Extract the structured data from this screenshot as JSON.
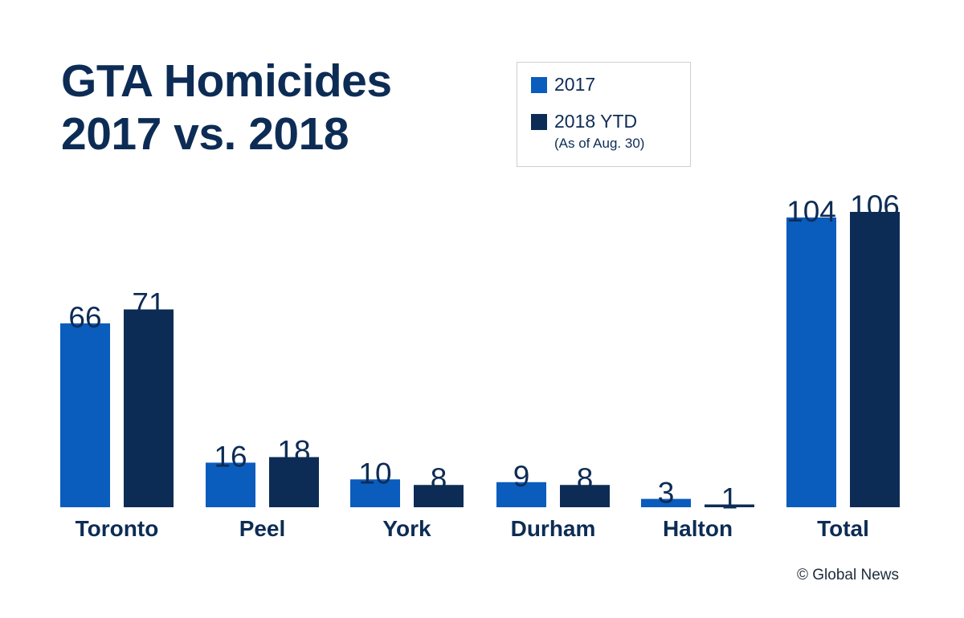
{
  "title_line1": "GTA Homicides",
  "title_line2": "2017 vs. 2018",
  "legend": {
    "items": [
      {
        "label": "2017",
        "color": "#0a5cbd"
      },
      {
        "label": "2018 YTD",
        "color": "#0d2c55"
      }
    ],
    "note": "(As of Aug. 30)"
  },
  "chart_data": {
    "type": "bar",
    "categories": [
      "Toronto",
      "Peel",
      "York",
      "Durham",
      "Halton",
      "Total"
    ],
    "series": [
      {
        "name": "2017",
        "color": "#0a5cbd",
        "values": [
          66,
          16,
          10,
          9,
          3,
          104
        ]
      },
      {
        "name": "2018 YTD",
        "color": "#0d2c55",
        "values": [
          71,
          18,
          8,
          8,
          1,
          106
        ]
      }
    ],
    "title": "GTA Homicides 2017 vs. 2018",
    "xlabel": "",
    "ylabel": "",
    "ylim": [
      0,
      106
    ],
    "grid": false,
    "legend_position": "top-right",
    "data_labels": true
  },
  "credit": "© Global News"
}
